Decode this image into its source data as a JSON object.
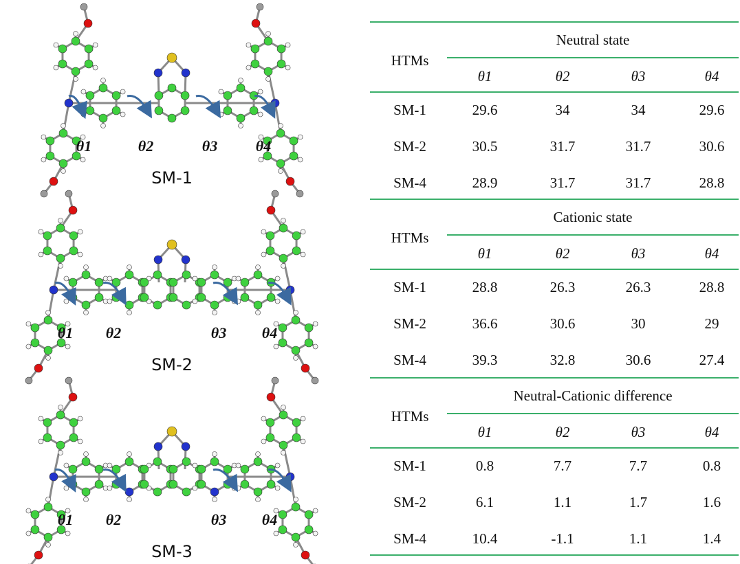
{
  "molecules": [
    {
      "label": "SM-1",
      "angles": [
        "θ1",
        "θ2",
        "θ3",
        "θ4"
      ]
    },
    {
      "label": "SM-2",
      "angles": [
        "θ1",
        "θ2",
        "θ3",
        "θ4"
      ]
    },
    {
      "label": "SM-3",
      "angles": [
        "θ1",
        "θ2",
        "θ3",
        "θ4"
      ]
    }
  ],
  "table": {
    "sections": [
      {
        "title": "Neutral state",
        "header": "HTMs",
        "columns": [
          "θ1",
          "θ2",
          "θ3",
          "θ4"
        ],
        "rows": [
          {
            "name": "SM-1",
            "values": [
              29.6,
              34,
              34,
              29.6
            ]
          },
          {
            "name": "SM-2",
            "values": [
              30.5,
              31.7,
              31.7,
              30.6
            ]
          },
          {
            "name": "SM-4",
            "values": [
              28.9,
              31.7,
              31.7,
              28.8
            ]
          }
        ]
      },
      {
        "title": "Cationic state",
        "header": "HTMs",
        "columns": [
          "θ1",
          "θ2",
          "θ3",
          "θ4"
        ],
        "rows": [
          {
            "name": "SM-1",
            "values": [
              28.8,
              26.3,
              26.3,
              28.8
            ]
          },
          {
            "name": "SM-2",
            "values": [
              36.6,
              30.6,
              30,
              29
            ]
          },
          {
            "name": "SM-4",
            "values": [
              39.3,
              32.8,
              30.6,
              27.4
            ]
          }
        ]
      },
      {
        "title": "Neutral-Cationic difference",
        "header": "HTMs",
        "columns": [
          "θ1",
          "θ2",
          "θ3",
          "θ4"
        ],
        "rows": [
          {
            "name": "SM-1",
            "values": [
              0.8,
              7.7,
              7.7,
              0.8
            ]
          },
          {
            "name": "SM-2",
            "values": [
              6.1,
              1.1,
              1.7,
              1.6
            ]
          },
          {
            "name": "SM-4",
            "values": [
              10.4,
              -1.1,
              1.1,
              1.4
            ]
          }
        ]
      }
    ]
  }
}
